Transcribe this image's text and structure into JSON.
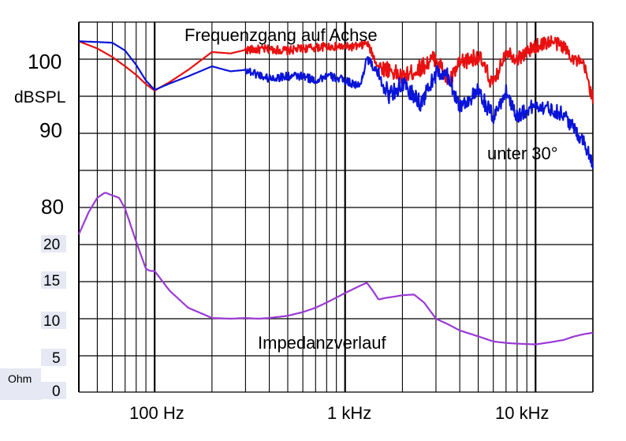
{
  "chart_data": {
    "type": "line",
    "title": "Frequenzgang auf Achse",
    "x_axis": {
      "scale": "log",
      "range": [
        40,
        20000
      ],
      "tick_labels": [
        {
          "value": 100,
          "label": "100 Hz"
        },
        {
          "value": 1000,
          "label": "1 kHz"
        },
        {
          "value": 10000,
          "label": "10 kHz"
        }
      ]
    },
    "spl_axis": {
      "label": "dBSPL",
      "range": [
        75,
        107
      ],
      "tick_labels": [
        {
          "value": 100,
          "label": "100"
        },
        {
          "value": 90,
          "label": "90"
        },
        {
          "value": 80,
          "label": "80"
        }
      ]
    },
    "impedance_axis": {
      "label": "Ohm",
      "range": [
        0,
        25
      ],
      "tick_labels": [
        {
          "value": 20,
          "label": "20"
        },
        {
          "value": 15,
          "label": "15"
        },
        {
          "value": 10,
          "label": "10"
        },
        {
          "value": 5,
          "label": "5"
        },
        {
          "value": 0,
          "label": "0"
        }
      ]
    },
    "grid": true,
    "annotations": {
      "off_axis": "unter 30°",
      "impedance": "Impedanzverlauf"
    },
    "series": [
      {
        "color": "#e81010",
        "axis": "spl",
        "x": [
          40,
          50,
          60,
          70,
          80,
          90,
          100,
          120,
          150,
          200,
          250,
          300,
          400,
          500,
          600,
          700,
          800,
          1000,
          1200,
          1300,
          1500,
          1700,
          2000,
          2500,
          3000,
          3500,
          4000,
          5000,
          6000,
          7000,
          8000,
          10000,
          12000,
          14000,
          16000,
          18000,
          20000
        ],
        "y": [
          102.5,
          101.5,
          100.3,
          99.0,
          97.8,
          96.5,
          95.6,
          96.8,
          98.5,
          101.0,
          100.8,
          101.3,
          101.4,
          101.2,
          101.5,
          101.6,
          101.8,
          101.7,
          101.8,
          102.3,
          98.9,
          98.6,
          97.4,
          98.8,
          100.3,
          96.7,
          99.3,
          100.5,
          96.3,
          101.3,
          100.0,
          101.8,
          102.5,
          101.8,
          100.0,
          99.0,
          94.5
        ]
      },
      {
        "color": "#0a14d8",
        "axis": "spl",
        "x": [
          40,
          50,
          60,
          70,
          80,
          90,
          100,
          120,
          150,
          200,
          250,
          300,
          400,
          500,
          600,
          700,
          800,
          1000,
          1200,
          1300,
          1500,
          1700,
          2000,
          2500,
          3000,
          3500,
          4000,
          5000,
          6000,
          7000,
          8000,
          10000,
          12000,
          14000,
          16000,
          18000,
          20000
        ],
        "y": [
          102.5,
          102.4,
          102.3,
          101.2,
          99.2,
          97.0,
          95.7,
          96.6,
          97.6,
          99.0,
          98.3,
          98.5,
          97.3,
          97.6,
          97.6,
          97.0,
          97.7,
          97.0,
          96.2,
          100.2,
          97.8,
          95.0,
          96.5,
          93.8,
          98.0,
          97.5,
          93.4,
          95.4,
          91.8,
          95.5,
          92.0,
          93.6,
          93.0,
          92.3,
          90.2,
          88.4,
          85.4
        ]
      },
      {
        "color": "#9a3ad4",
        "axis": "impedance",
        "x": [
          40,
          45,
          50,
          55,
          60,
          65,
          70,
          80,
          90,
          95,
          100,
          120,
          150,
          200,
          250,
          300,
          350,
          400,
          500,
          600,
          700,
          800,
          1000,
          1200,
          1300,
          1400,
          1500,
          1600,
          1800,
          2000,
          2300,
          2600,
          3000,
          3500,
          4000,
          5000,
          6000,
          7000,
          8000,
          10000,
          12000,
          14000,
          16000,
          18000,
          20000
        ],
        "y": [
          21.5,
          24.5,
          26.5,
          27.2,
          26.8,
          26.5,
          25.0,
          20.5,
          16.8,
          16.5,
          16.5,
          13.8,
          11.5,
          10.1,
          10.0,
          10.1,
          10.0,
          10.1,
          10.4,
          10.9,
          11.5,
          12.2,
          13.5,
          14.5,
          14.9,
          13.8,
          12.6,
          12.8,
          13.0,
          13.2,
          13.3,
          12.2,
          10.0,
          9.2,
          8.4,
          7.6,
          6.9,
          6.7,
          6.6,
          6.5,
          6.8,
          7.1,
          7.6,
          7.9,
          8.1
        ]
      }
    ]
  }
}
